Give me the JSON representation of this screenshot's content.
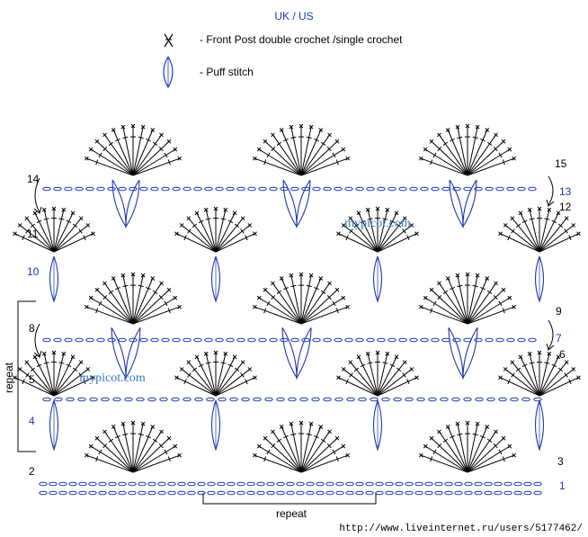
{
  "header": {
    "title": "UK / US"
  },
  "legend": [
    {
      "symbol": "fpdc-icon",
      "text": "-  Front Post double crochet /single crochet"
    },
    {
      "symbol": "puff-stitch-icon",
      "text": "-  Puff stitch"
    }
  ],
  "rows_left": [
    "14",
    "11",
    "10",
    "8",
    "5",
    "4",
    "2"
  ],
  "rows_right": [
    "15",
    "13",
    "12",
    "9",
    "7",
    "6",
    "3",
    "1"
  ],
  "repeat_labels": {
    "vertical": "repeat",
    "horizontal": "repeat"
  },
  "watermark": "mypicot.com",
  "url": "http://www.liveinternet.ru/users/5177462/",
  "colors": {
    "stitch": "#000000",
    "chain": "#1f36b4",
    "blue_label": "#1f36b4",
    "watermark": "#3a78b8"
  }
}
